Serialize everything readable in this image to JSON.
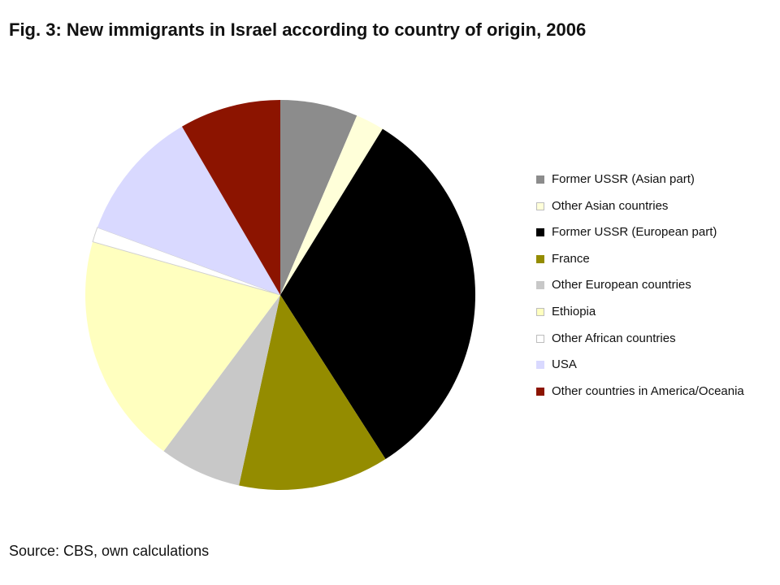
{
  "title": "Fig. 3: New immigrants in Israel according to country of origin, 2006",
  "source": "Source: CBS, own calculations",
  "chart_data": {
    "type": "pie",
    "title": "Fig. 3: New immigrants in Israel according to country of origin, 2006",
    "slices": [
      {
        "label": "Former USSR (Asian part)",
        "value": 6.8,
        "color": "#8c8c8c"
      },
      {
        "label": "Other Asian countries",
        "value": 2.5,
        "color": "#ffffd9"
      },
      {
        "label": "Former USSR (European part)",
        "value": 34.0,
        "color": "#000000"
      },
      {
        "label": "France",
        "value": 13.2,
        "color": "#948c00"
      },
      {
        "label": "Other European countries",
        "value": 7.2,
        "color": "#c8c8c8"
      },
      {
        "label": "Ethiopia",
        "value": 20.3,
        "color": "#ffffbf"
      },
      {
        "label": "Other African countries",
        "value": 1.3,
        "color": "#ffffff"
      },
      {
        "label": "USA",
        "value": 11.6,
        "color": "#d9d9ff"
      },
      {
        "label": "Other countries in America/Oceania",
        "value": 8.9,
        "color": "#8c1400"
      }
    ],
    "start": "12 o'clock",
    "direction": "clockwise",
    "legend_position": "right"
  }
}
